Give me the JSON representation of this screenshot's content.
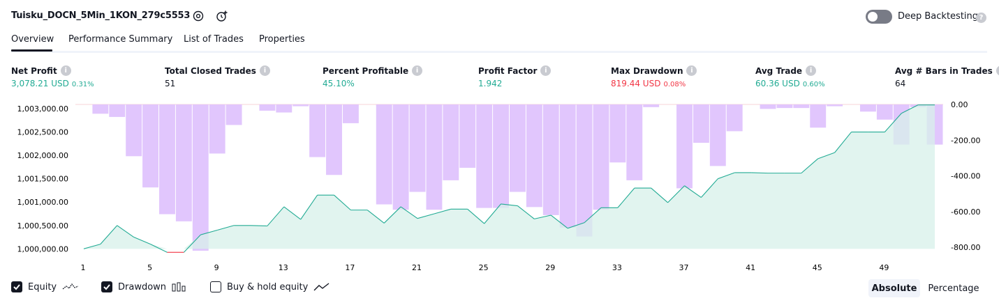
{
  "header": {
    "title": "Tuisku_DOCN_5Min_1KON_279c5553",
    "deep_backtesting_label": "Deep Backtesting",
    "deep_backtesting_on": false
  },
  "tabs": [
    {
      "label": "Overview",
      "active": true
    },
    {
      "label": "Performance Summary",
      "active": false
    },
    {
      "label": "List of Trades",
      "active": false
    },
    {
      "label": "Properties",
      "active": false
    }
  ],
  "stats": [
    {
      "label": "Net Profit",
      "value": "3,078.21 USD",
      "pct": "0.31%",
      "color": "green"
    },
    {
      "label": "Total Closed Trades",
      "value": "51",
      "pct": "",
      "color": "black"
    },
    {
      "label": "Percent Profitable",
      "value": "45.10%",
      "pct": "",
      "color": "green"
    },
    {
      "label": "Profit Factor",
      "value": "1.942",
      "pct": "",
      "color": "green"
    },
    {
      "label": "Max Drawdown",
      "value": "819.44 USD",
      "pct": "0.08%",
      "color": "red"
    },
    {
      "label": "Avg Trade",
      "value": "60.36 USD",
      "pct": "0.60%",
      "color": "green"
    },
    {
      "label": "Avg # Bars in Trades",
      "value": "64",
      "pct": "",
      "color": "black"
    }
  ],
  "colors": {
    "equity_line": "#22ab94",
    "equity_fill": "#d7f0ea",
    "equity_below": "#f23645",
    "drawdown_bar": "#e1c6fd",
    "drawdown_overlap": "#b4b3e6"
  },
  "chart_data": {
    "type": "bar",
    "left_axis": {
      "ticks": [
        "1,003,000.00",
        "1,002,500.00",
        "1,002,000.00",
        "1,001,500.00",
        "1,001,000.00",
        "1,000,500.00",
        "1,000,000.00"
      ],
      "range": [
        999975,
        1003090
      ]
    },
    "right_axis": {
      "ticks": [
        "0.00",
        "-200.00",
        "-400.00",
        "-600.00",
        "-800.00"
      ],
      "range": [
        -800,
        0
      ]
    },
    "x_ticks": [
      "1",
      "5",
      "9",
      "13",
      "17",
      "21",
      "25",
      "29",
      "33",
      "37",
      "41",
      "45",
      "49"
    ],
    "x": [
      1,
      2,
      3,
      4,
      5,
      6,
      7,
      8,
      9,
      10,
      11,
      12,
      13,
      14,
      15,
      16,
      17,
      18,
      19,
      20,
      21,
      22,
      23,
      24,
      25,
      26,
      27,
      28,
      29,
      30,
      31,
      32,
      33,
      34,
      35,
      36,
      37,
      38,
      39,
      40,
      41,
      42,
      43,
      44,
      45,
      46,
      47,
      48,
      49,
      50,
      51,
      52
    ],
    "series": [
      {
        "name": "Equity",
        "type": "area",
        "values": [
          1000000,
          1000100,
          1000500,
          1000250,
          1000100,
          999925,
          999925,
          1000300,
          1000400,
          1000500,
          1000500,
          1000490,
          1000900,
          1000630,
          1001150,
          1001150,
          1000830,
          1000830,
          1000550,
          1000900,
          1000650,
          1000750,
          1000850,
          1000850,
          1000540,
          1000960,
          1000920,
          1000640,
          1000720,
          1000440,
          1000560,
          1000880,
          1000880,
          1001300,
          1001300,
          1000990,
          1001350,
          1001100,
          1001500,
          1001630,
          1001630,
          1001620,
          1001620,
          1001620,
          1001930,
          1002060,
          1002500,
          1002500,
          1002500,
          1002900,
          1003080,
          1003080
        ]
      },
      {
        "name": "Drawdown",
        "type": "bar",
        "values": [
          0,
          -52,
          -70,
          -290,
          -465,
          -615,
          -655,
          -820,
          -275,
          -115,
          0,
          -35,
          -45,
          -10,
          -295,
          -395,
          -105,
          0,
          -560,
          -590,
          -490,
          -590,
          -425,
          -355,
          -580,
          -580,
          -490,
          -575,
          -620,
          -690,
          -740,
          -590,
          -325,
          -425,
          -15,
          0,
          -470,
          -215,
          -345,
          -150,
          0,
          -25,
          -20,
          -20,
          -130,
          -10,
          0,
          -40,
          -85,
          -225,
          -15,
          -225
        ]
      }
    ],
    "legend": {
      "equity_label": "Equity",
      "drawdown_label": "Drawdown",
      "buyhold_label": "Buy & hold equity",
      "equity_checked": true,
      "drawdown_checked": true,
      "buyhold_checked": false
    },
    "scale_buttons": {
      "absolute": "Absolute",
      "percentage": "Percentage",
      "active": "absolute"
    }
  }
}
